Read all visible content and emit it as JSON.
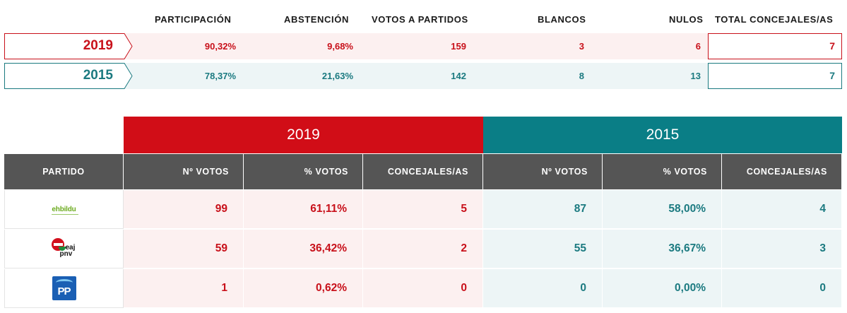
{
  "summary": {
    "headers": {
      "participacion": "PARTICIPACIÓN",
      "abstencion": "ABSTENCIÓN",
      "votos_partidos": "VOTOS A PARTIDOS",
      "blancos": "BLANCOS",
      "nulos": "NULOS",
      "total_concejales": "TOTAL CONCEJALES/AS"
    },
    "rows": [
      {
        "year": "2019",
        "participacion": "90,32%",
        "abstencion": "9,68%",
        "votos_partidos": "159",
        "blancos": "3",
        "nulos": "6",
        "total_concejales": "7"
      },
      {
        "year": "2015",
        "participacion": "78,37%",
        "abstencion": "21,63%",
        "votos_partidos": "142",
        "blancos": "8",
        "nulos": "13",
        "total_concejales": "7"
      }
    ]
  },
  "detail": {
    "year_headers": [
      "2019",
      "2015"
    ],
    "columns": {
      "partido": "PARTIDO",
      "votos": "Nº VOTOS",
      "pct": "% VOTOS",
      "concejales": "CONCEJALES/AS"
    },
    "parties": [
      {
        "logo_text": "ehbildu",
        "logo_icon": "ehbildu-logo-icon",
        "y2019": {
          "votos": "99",
          "pct": "61,11%",
          "concejales": "5"
        },
        "y2015": {
          "votos": "87",
          "pct": "58,00%",
          "concejales": "4"
        }
      },
      {
        "logo_text_1": "eaj",
        "logo_text_2": "pnv",
        "logo_icon": "eaj-pnv-logo-icon",
        "y2019": {
          "votos": "59",
          "pct": "36,42%",
          "concejales": "2"
        },
        "y2015": {
          "votos": "55",
          "pct": "36,67%",
          "concejales": "3"
        }
      },
      {
        "logo_text": "PP",
        "logo_icon": "pp-logo-icon",
        "y2019": {
          "votos": "1",
          "pct": "0,62%",
          "concejales": "0"
        },
        "y2015": {
          "votos": "0",
          "pct": "0,00%",
          "concejales": "0"
        }
      }
    ]
  },
  "colors": {
    "red_2019": "#c8101a",
    "teal_2015": "#1b7a80",
    "header_gray": "#555555"
  }
}
